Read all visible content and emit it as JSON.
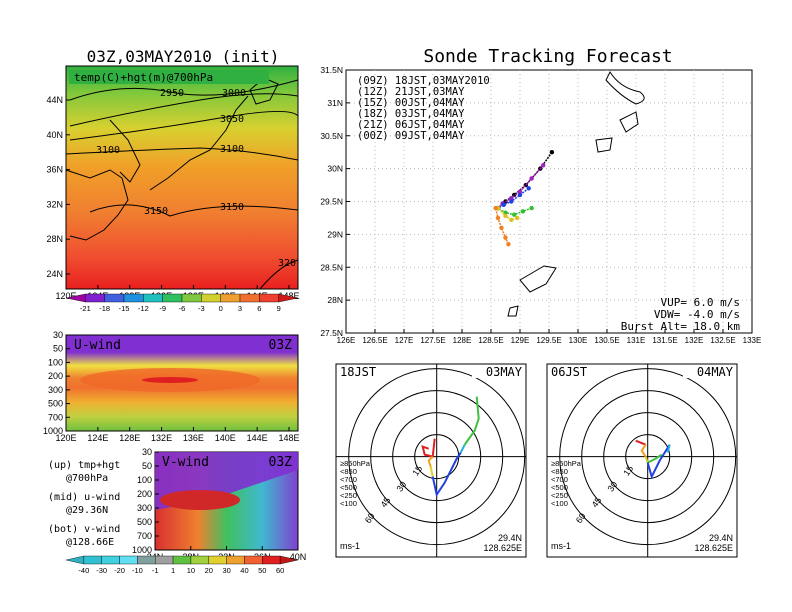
{
  "titles": {
    "left": "03Z,03MAY2010 (init)",
    "right": "Sonde Tracking Forecast"
  },
  "map700": {
    "label": "temp(C)+hgt(m)@700hPa",
    "lat_ticks": [
      "44N",
      "40N",
      "36N",
      "32N",
      "28N",
      "24N"
    ],
    "lon_ticks": [
      "120E",
      "124E",
      "128E",
      "132E",
      "136E",
      "140E",
      "144E",
      "148E"
    ],
    "contours": [
      {
        "label": "2950"
      },
      {
        "label": "3000"
      },
      {
        "label": "3050"
      },
      {
        "label": "3100"
      },
      {
        "label": "3100"
      },
      {
        "label": "3150"
      },
      {
        "label": "3150"
      },
      {
        "label": "320"
      }
    ],
    "colorbar": [
      "-21",
      "-18",
      "-15",
      "-12",
      "-9",
      "-6",
      "-3",
      "0",
      "3",
      "6",
      "9"
    ]
  },
  "uwind": {
    "label": "U-wind",
    "time": "03Z",
    "y_ticks": [
      "30",
      "50",
      "100",
      "200",
      "300",
      "500",
      "700",
      "1000"
    ],
    "x_ticks": [
      "120E",
      "124E",
      "128E",
      "132E",
      "136E",
      "140E",
      "144E",
      "148E"
    ]
  },
  "vwind": {
    "label": "V-wind",
    "time": "03Z",
    "y_ticks": [
      "30",
      "50",
      "100",
      "200",
      "300",
      "500",
      "700",
      "1000"
    ],
    "x_ticks": [
      "24N",
      "28N",
      "32N",
      "36N",
      "40N"
    ]
  },
  "notes": {
    "up1": "(up) tmp+hgt",
    "up2": "@700hPa",
    "mid1": "(mid) u-wind",
    "mid2": "@29.36N",
    "bot1": "(bot) v-wind",
    "bot2": "@128.66E"
  },
  "wind_colorbar": [
    "-40",
    "-30",
    "-20",
    "-10",
    "-1",
    "1",
    "10",
    "20",
    "30",
    "40",
    "50",
    "60"
  ],
  "track": {
    "legend": [
      {
        "text": "(09Z) 18JST,03MAY2010",
        "color": "#000000"
      },
      {
        "text": "(12Z) 21JST,03MAY",
        "color": "#a020c0"
      },
      {
        "text": "(15Z) 00JST,04MAY",
        "color": "#2040e0"
      },
      {
        "text": "(18Z) 03JST,04MAY",
        "color": "#30c030"
      },
      {
        "text": "(21Z) 06JST,04MAY",
        "color": "#e0c020"
      },
      {
        "text": "(00Z) 09JST,04MAY",
        "color": "#f08020"
      }
    ],
    "lat_ticks": [
      "31.5N",
      "31N",
      "30.5N",
      "30N",
      "29.5N",
      "29N",
      "28.5N",
      "28N",
      "27.5N"
    ],
    "lon_ticks": [
      "126E",
      "126.5E",
      "127E",
      "127.5E",
      "128E",
      "128.5E",
      "129E",
      "129.5E",
      "130E",
      "130.5E",
      "131E",
      "131.5E",
      "132E",
      "132.5E",
      "133E"
    ],
    "vup": "VUP=  6.0  m/s",
    "vdw": "VDW= -4.0  m/s",
    "burst": "Burst Alt=  18.0  km"
  },
  "chart_data": [
    {
      "type": "line",
      "title": "Sonde Tracking Forecast",
      "xlabel": "",
      "ylabel": "",
      "xlim": [
        126,
        133
      ],
      "ylim": [
        27.5,
        31.5
      ],
      "series": [
        {
          "name": "(09Z) 18JST,03MAY2010",
          "x": [
            129.55,
            129.35,
            129.1,
            128.9,
            128.75,
            128.62
          ],
          "y": [
            30.25,
            30.0,
            29.75,
            29.6,
            29.5,
            29.4
          ]
        },
        {
          "name": "(12Z) 21JST,03MAY",
          "x": [
            129.4,
            129.2,
            129.0,
            128.85,
            128.7,
            128.62
          ],
          "y": [
            30.05,
            29.85,
            29.65,
            29.55,
            29.47,
            29.4
          ]
        },
        {
          "name": "(15Z) 00JST,04MAY",
          "x": [
            129.15,
            129.0,
            128.85,
            128.72,
            128.62
          ],
          "y": [
            29.7,
            29.6,
            29.5,
            29.45,
            29.4
          ]
        },
        {
          "name": "(18Z) 03JST,04MAY",
          "x": [
            129.2,
            129.05,
            128.9,
            128.75,
            128.62
          ],
          "y": [
            29.4,
            29.35,
            29.3,
            29.33,
            29.4
          ]
        },
        {
          "name": "(21Z) 06JST,04MAY",
          "x": [
            128.95,
            128.85,
            128.75,
            128.62
          ],
          "y": [
            29.25,
            29.22,
            29.28,
            29.4
          ]
        },
        {
          "name": "(00Z) 09JST,04MAY",
          "x": [
            128.8,
            128.75,
            128.68,
            128.62,
            128.58
          ],
          "y": [
            28.85,
            28.95,
            29.1,
            29.25,
            29.4
          ]
        }
      ]
    }
  ],
  "hodo1": {
    "time": "18JST",
    "date": "03MAY",
    "lat": "29.4N",
    "lon": "128.625E",
    "unit": "ms-1",
    "rings": [
      "15",
      "30",
      "45",
      "60"
    ],
    "legend": [
      {
        "t": "≥850hPa",
        "c": "#e02020"
      },
      {
        "t": "<850",
        "c": "#f0a020"
      },
      {
        "t": "<700",
        "c": "#e0d020"
      },
      {
        "t": "<500",
        "c": "#40c040"
      },
      {
        "t": "<250",
        "c": "#20b0e0"
      },
      {
        "t": "<100",
        "c": "#2040e0"
      }
    ]
  },
  "hodo2": {
    "time": "06JST",
    "date": "04MAY",
    "lat": "29.4N",
    "lon": "128.625E",
    "unit": "ms-1",
    "rings": [
      "15",
      "30",
      "45",
      "60"
    ],
    "legend": [
      {
        "t": "≥850hPa",
        "c": "#e02020"
      },
      {
        "t": "<850",
        "c": "#f0a020"
      },
      {
        "t": "<700",
        "c": "#e0d020"
      },
      {
        "t": "<500",
        "c": "#40c040"
      },
      {
        "t": "<250",
        "c": "#20b0e0"
      },
      {
        "t": "<100",
        "c": "#2040e0"
      }
    ]
  }
}
